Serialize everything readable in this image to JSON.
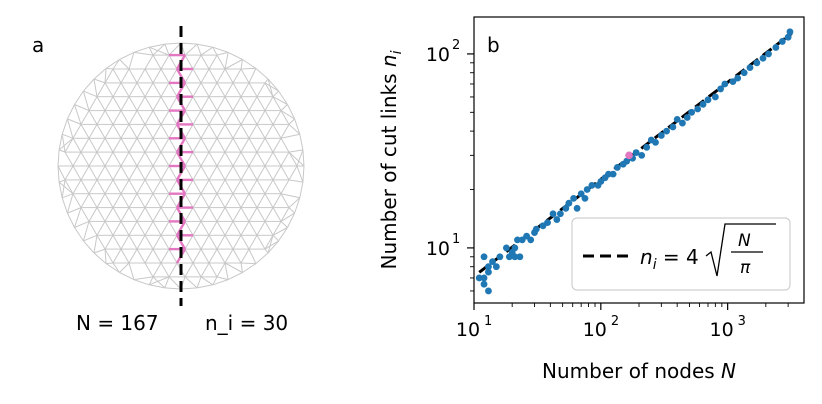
{
  "panel_a": {
    "label": "a",
    "N_text": "N = 167",
    "n_text": "n_i = 30",
    "colors": {
      "mesh": "#c8c8c8",
      "cut": "#e377c2",
      "line": "#000000"
    }
  },
  "chart_data": {
    "type": "scatter",
    "panel_label": "b",
    "xlabel": "Number of nodes N",
    "ylabel": "Number of cut links n_i",
    "xscale": "log",
    "yscale": "log",
    "xlim": [
      10,
      4000
    ],
    "ylim": [
      5.2,
      155
    ],
    "xticks": [
      10,
      100,
      1000
    ],
    "yticks": [
      10,
      100
    ],
    "legend": {
      "label": "n_i = 4√(N/π)",
      "placement": "lower-right"
    },
    "colors": {
      "points": "#1f77b4",
      "highlight": "#e377c2",
      "fit": "#000000"
    },
    "series": [
      {
        "kind": "points",
        "x": [
          11,
          12,
          12,
          12,
          13,
          13,
          13,
          14,
          15,
          16,
          18,
          19,
          20,
          21,
          21,
          22,
          23,
          24,
          26,
          28,
          30,
          31,
          35,
          38,
          42,
          45,
          48,
          53,
          56,
          61,
          65,
          70,
          75,
          78,
          85,
          95,
          100,
          108,
          115,
          125,
          135,
          150,
          160,
          178,
          190,
          210,
          230,
          250,
          270,
          300,
          330,
          370,
          400,
          440,
          480,
          520,
          580,
          640,
          700,
          800,
          880,
          950,
          1100,
          1200,
          1350,
          1500,
          1700,
          1900,
          2100,
          2400,
          2700,
          3000,
          3100
        ],
        "y": [
          7,
          9,
          7,
          6.5,
          8,
          7.5,
          6,
          8.5,
          8,
          9,
          10,
          9,
          9.5,
          9,
          10,
          11,
          9,
          11,
          11.5,
          11,
          12,
          12.5,
          13,
          13.5,
          15,
          14,
          15,
          16,
          17,
          18,
          16,
          19,
          18,
          20,
          21,
          21,
          22,
          23,
          24,
          24,
          26,
          27,
          28,
          29,
          31,
          30,
          33,
          36,
          35,
          38,
          40,
          42,
          46,
          44,
          47,
          50,
          52,
          55,
          58,
          60,
          66,
          70,
          72,
          75,
          80,
          85,
          90,
          95,
          100,
          108,
          116,
          122,
          130
        ]
      },
      {
        "kind": "highlight",
        "x": [
          167
        ],
        "y": [
          30
        ]
      },
      {
        "kind": "fit",
        "formula": "4*sqrt(N/pi)",
        "x_range": [
          11,
          3200
        ]
      }
    ]
  }
}
